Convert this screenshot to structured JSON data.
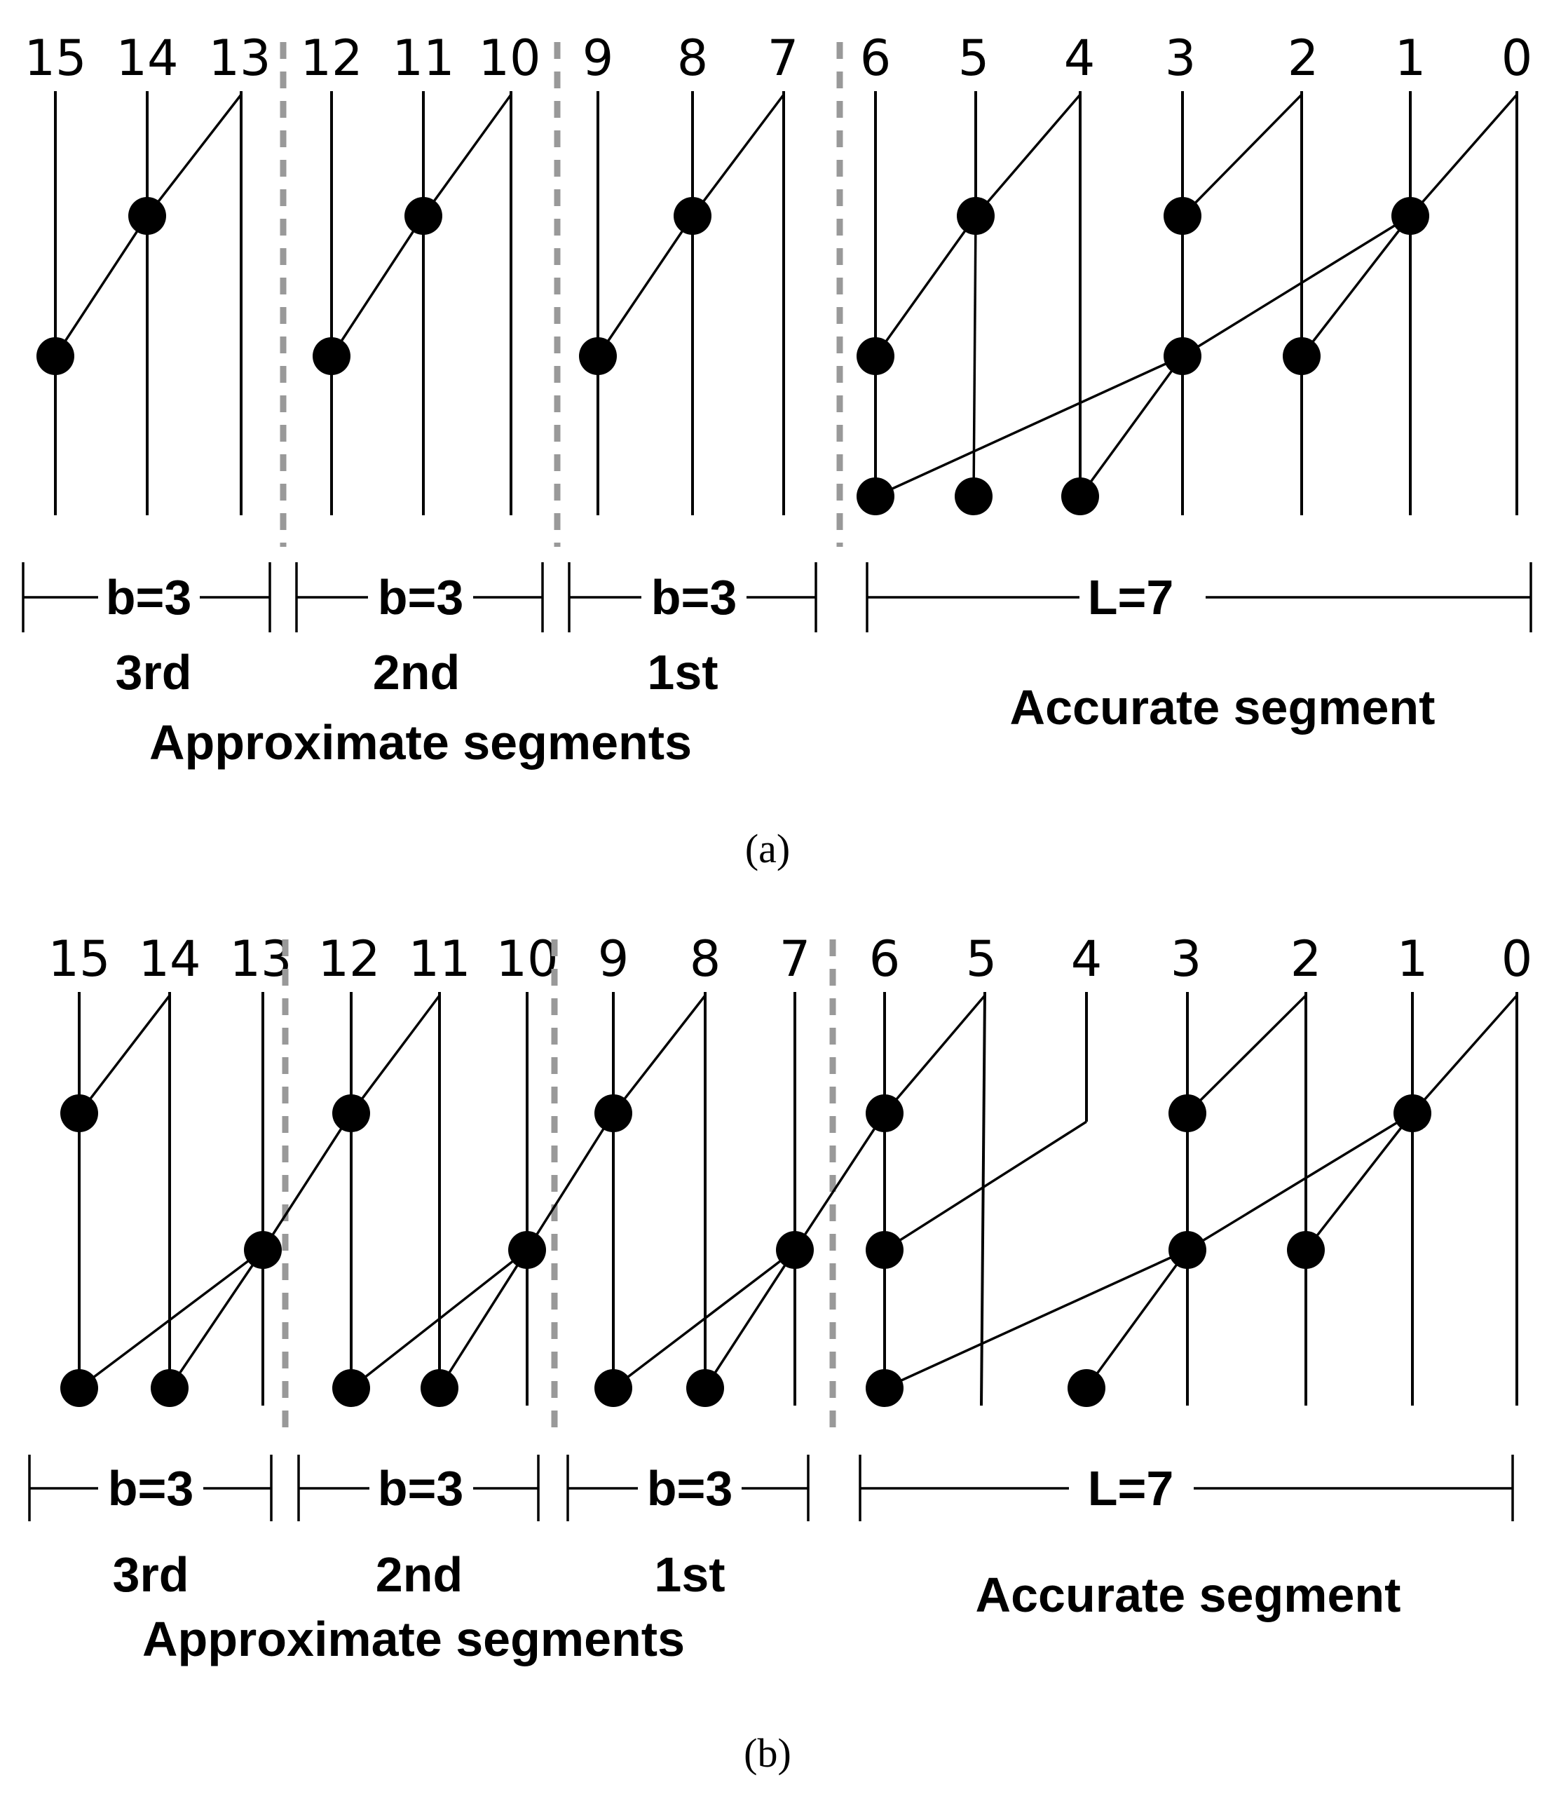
{
  "bits": [
    "15",
    "14",
    "13",
    "12",
    "11",
    "10",
    "9",
    "8",
    "7",
    "6",
    "5",
    "4",
    "3",
    "2",
    "1",
    "0"
  ],
  "panels": [
    {
      "caption": "(a)",
      "brackets": [
        {
          "label": "b=3",
          "name": "3rd"
        },
        {
          "label": "b=3",
          "name": "2nd"
        },
        {
          "label": "b=3",
          "name": "1st"
        },
        {
          "label": "L=7",
          "name": ""
        }
      ],
      "approximate_label": "Approximate segments",
      "accurate_label": "Accurate segment"
    },
    {
      "caption": "(b)",
      "brackets": [
        {
          "label": "b=3",
          "name": "3rd"
        },
        {
          "label": "b=3",
          "name": "2nd"
        },
        {
          "label": "b=3",
          "name": "1st"
        },
        {
          "label": "L=7",
          "name": ""
        }
      ],
      "approximate_label": "Approximate segments",
      "accurate_label": "Accurate segment"
    }
  ]
}
